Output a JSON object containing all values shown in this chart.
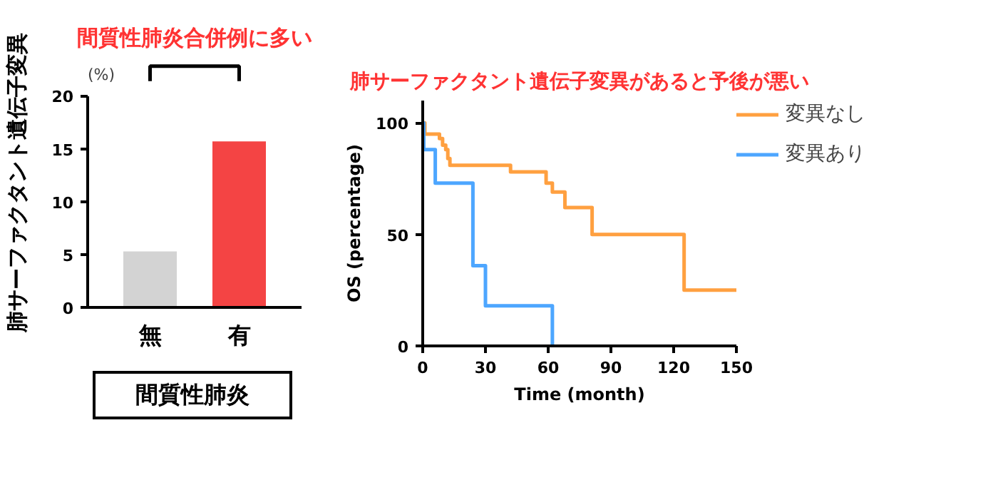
{
  "chart_data": [
    {
      "type": "bar",
      "title": "間質性肺炎合併例に多い",
      "ylabel": "肺サーファクタント遺伝子変異",
      "xlabel": "間質性肺炎",
      "categories": [
        "無",
        "有"
      ],
      "values": [
        5.3,
        15.7
      ],
      "colors": [
        "#d3d3d3",
        "#f44444"
      ],
      "ylim": [
        0,
        20
      ],
      "yticks": [
        0,
        5,
        10,
        15,
        20
      ],
      "grid": false,
      "annotations": [
        "(%)"
      ]
    },
    {
      "type": "step",
      "title": "肺サーファクタント遺伝子変異があると予後が悪い",
      "xlabel": "Time (month)",
      "ylabel": "OS (percentage)",
      "xlim": [
        0,
        150
      ],
      "xticks": [
        0,
        30,
        60,
        90,
        120,
        150
      ],
      "ylim": [
        0,
        110
      ],
      "yticks": [
        0,
        50,
        100
      ],
      "grid": false,
      "legend": "right",
      "series": [
        {
          "name": "変異なし",
          "color": "#ffa040",
          "x": [
            0,
            1,
            8,
            9.5,
            11,
            12,
            13,
            42,
            59,
            62,
            68,
            81,
            125,
            150
          ],
          "values": [
            100,
            95,
            93,
            90,
            88,
            84,
            81,
            78,
            73,
            69,
            62,
            50,
            25,
            25
          ]
        },
        {
          "name": "変異あり",
          "color": "#4da6ff",
          "x": [
            0,
            0.5,
            6,
            24,
            30,
            62
          ],
          "values": [
            100,
            88,
            73,
            36,
            18,
            0
          ]
        }
      ]
    }
  ]
}
